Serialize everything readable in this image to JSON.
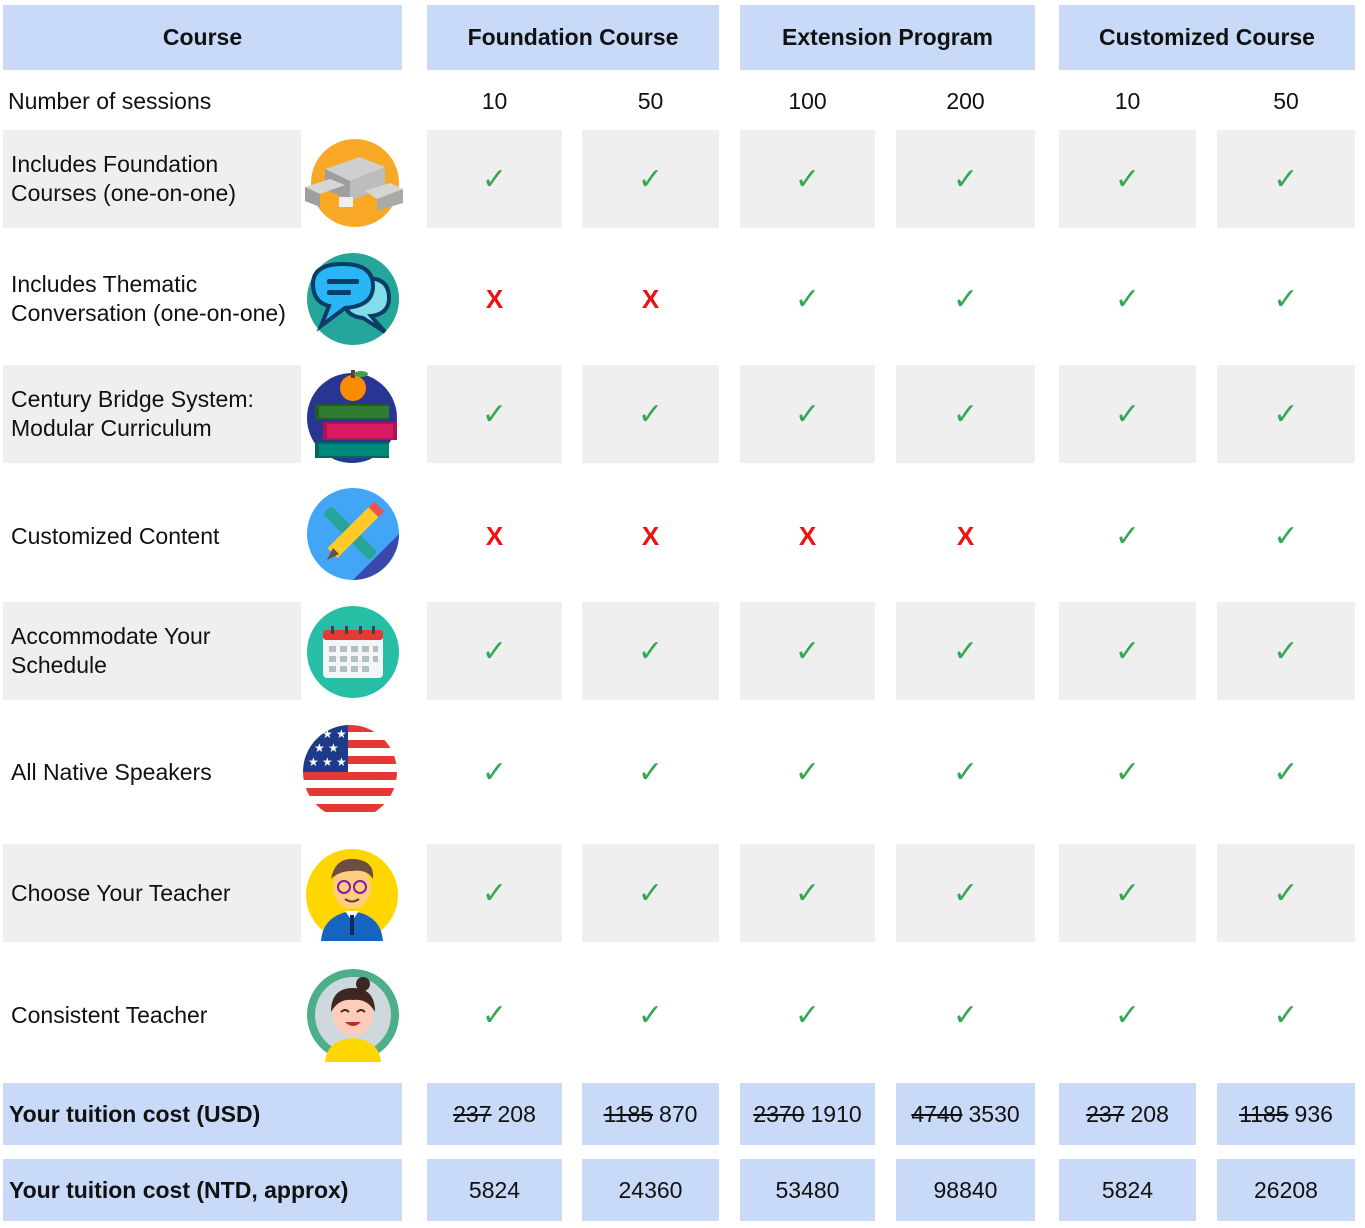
{
  "header": {
    "course": "Course",
    "foundation": "Foundation Course",
    "extension": "Extension Program",
    "customized": "Customized Course"
  },
  "sessions_label": "Number of sessions",
  "sessions": [
    "10",
    "50",
    "100",
    "200",
    "10",
    "50"
  ],
  "features": [
    {
      "label": "Includes Foundation Courses (one-on-one)",
      "icon": "building-blocks-icon",
      "marks": [
        "yes",
        "yes",
        "yes",
        "yes",
        "yes",
        "yes"
      ]
    },
    {
      "label": "Includes Thematic Conversation (one-on-one)",
      "icon": "chat-bubbles-icon",
      "marks": [
        "no",
        "no",
        "yes",
        "yes",
        "yes",
        "yes"
      ]
    },
    {
      "label": "Century Bridge System: Modular Curriculum",
      "icon": "books-apple-icon",
      "marks": [
        "yes",
        "yes",
        "yes",
        "yes",
        "yes",
        "yes"
      ]
    },
    {
      "label": "Customized Content",
      "icon": "pencil-wrench-icon",
      "marks": [
        "no",
        "no",
        "no",
        "no",
        "yes",
        "yes"
      ]
    },
    {
      "label": "Accommodate Your Schedule",
      "icon": "calendar-icon",
      "marks": [
        "yes",
        "yes",
        "yes",
        "yes",
        "yes",
        "yes"
      ]
    },
    {
      "label": "All Native Speakers",
      "icon": "us-flag-icon",
      "marks": [
        "yes",
        "yes",
        "yes",
        "yes",
        "yes",
        "yes"
      ]
    },
    {
      "label": "Choose Your Teacher",
      "icon": "male-teacher-icon",
      "marks": [
        "yes",
        "yes",
        "yes",
        "yes",
        "yes",
        "yes"
      ]
    },
    {
      "label": "Consistent Teacher",
      "icon": "female-teacher-icon",
      "marks": [
        "yes",
        "yes",
        "yes",
        "yes",
        "yes",
        "yes"
      ]
    }
  ],
  "mark_glyphs": {
    "yes": "✓",
    "no": "X"
  },
  "colors": {
    "header_bg": "#c9daf8",
    "row_bg": "#efefef",
    "check": "#34a853",
    "cross": "#ee1111"
  },
  "cost_usd": {
    "label": "Your tuition cost (USD)",
    "original": [
      "237",
      "1185",
      "2370",
      "4740",
      "237",
      "1185"
    ],
    "discounted": [
      "208",
      "870",
      "1910",
      "3530",
      "208",
      "936"
    ]
  },
  "cost_ntd": {
    "label": "Your tuition cost (NTD, approx)",
    "values": [
      "5824",
      "24360",
      "53480",
      "98840",
      "5824",
      "26208"
    ]
  }
}
